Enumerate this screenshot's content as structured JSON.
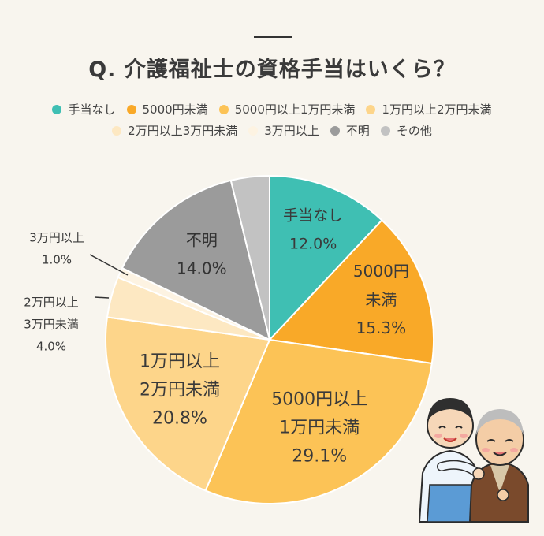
{
  "header": {
    "title": "Q. 介護福祉士の資格手当はいくら？"
  },
  "chart_data": {
    "type": "pie",
    "title": "Q. 介護福祉士の資格手当はいくら？",
    "legend_placement": "top",
    "slices": [
      {
        "name": "手当なし",
        "value": 12.0,
        "pct_label": "12.0%",
        "label_lines": [
          "手当なし"
        ],
        "color": "#3fbfb3",
        "inside": true,
        "text_color": "#3a3a3a"
      },
      {
        "name": "5000円未満",
        "value": 15.3,
        "pct_label": "15.3%",
        "label_lines": [
          "5000円",
          "未満"
        ],
        "color": "#f9a928",
        "inside": true,
        "text_color": "#3a3a3a"
      },
      {
        "name": "5000円以上1万円未満",
        "value": 29.1,
        "pct_label": "29.1%",
        "label_lines": [
          "5000円以上",
          "1万円未満"
        ],
        "color": "#fcc356",
        "inside": true,
        "text_color": "#3a3a3a"
      },
      {
        "name": "1万円以上2万円未満",
        "value": 20.8,
        "pct_label": "20.8%",
        "label_lines": [
          "1万円以上",
          "2万円未満"
        ],
        "color": "#fdd58a",
        "inside": true,
        "text_color": "#3a3a3a"
      },
      {
        "name": "2万円以上3万円未満",
        "value": 4.0,
        "pct_label": "4.0%",
        "label_lines": [
          "2万円以上",
          "3万円未満"
        ],
        "color": "#fde8c2",
        "inside": false,
        "text_color": "#3a3a3a"
      },
      {
        "name": "3万円以上",
        "value": 1.0,
        "pct_label": "1.0%",
        "label_lines": [
          "3万円以上"
        ],
        "color": "#fdf3e2",
        "inside": false,
        "text_color": "#3a3a3a"
      },
      {
        "name": "不明",
        "value": 14.0,
        "pct_label": "14.0%",
        "label_lines": [
          "不明"
        ],
        "color": "#9b9b9b",
        "inside": true,
        "text_color": "#333333"
      },
      {
        "name": "その他",
        "value": 3.8,
        "pct_label": "",
        "label_lines": [],
        "color": "#c2c2c2",
        "inside": false,
        "text_color": "#3a3a3a"
      }
    ]
  },
  "illustration": {
    "subject": "caregiver-and-elderly-man"
  }
}
